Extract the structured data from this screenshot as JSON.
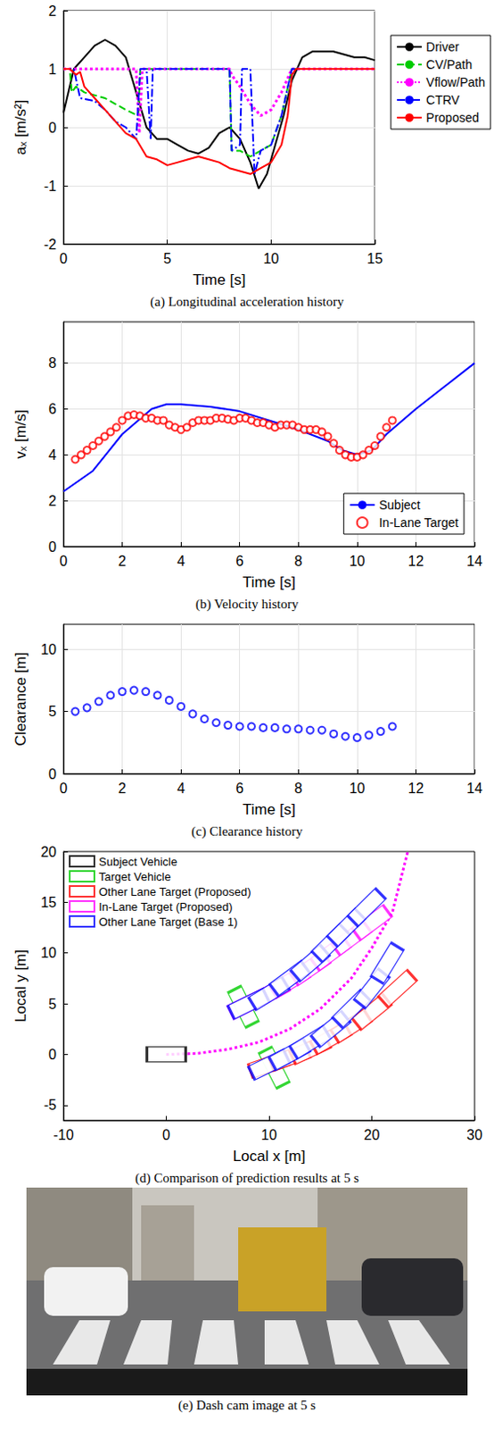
{
  "chart_data": [
    {
      "type": "line",
      "title": "(a) Longitudinal acceleration history",
      "xlabel": "Time [s]",
      "ylabel": "aₓ [m/s²]",
      "xlim": [
        0,
        15
      ],
      "xticks": [
        0,
        5,
        10,
        15
      ],
      "ylim": [
        -2,
        2
      ],
      "yticks": [
        -2,
        -1,
        0,
        1,
        2
      ],
      "grid": true,
      "legend": "right",
      "series": [
        {
          "name": "Driver",
          "color": "#000000",
          "line_style": "solid",
          "x": [
            0,
            0.5,
            1,
            1.5,
            2,
            2.5,
            3,
            3.5,
            4,
            4.5,
            5,
            5.5,
            6,
            6.5,
            7,
            7.5,
            8,
            8.5,
            9,
            9.4,
            9.8,
            10.2,
            10.6,
            11,
            11.5,
            12,
            13,
            14,
            14.5,
            15
          ],
          "values": [
            0.25,
            1.0,
            1.2,
            1.4,
            1.5,
            1.4,
            1.2,
            0.6,
            0.0,
            -0.2,
            -0.2,
            -0.3,
            -0.4,
            -0.45,
            -0.35,
            -0.1,
            0.0,
            -0.2,
            -0.6,
            -1.05,
            -0.8,
            -0.3,
            0.2,
            0.8,
            1.2,
            1.3,
            1.3,
            1.2,
            1.2,
            1.15
          ]
        },
        {
          "name": "CV/Path",
          "color": "#00cc00",
          "line_style": "dashed",
          "x": [
            0,
            0.3,
            0.4,
            0.6,
            1,
            2,
            3,
            3.6,
            3.7,
            8,
            8.1,
            8.5,
            9,
            9.5,
            10,
            10.5,
            11,
            15
          ],
          "values": [
            1.0,
            1.0,
            0.6,
            0.7,
            0.6,
            0.5,
            0.3,
            0.2,
            1.0,
            1.0,
            -0.4,
            -0.4,
            -0.5,
            -0.4,
            -0.3,
            0.2,
            1.0,
            1.0
          ]
        },
        {
          "name": "Vflow/Path",
          "color": "#ff00ff",
          "line_style": "dotted",
          "x": [
            0,
            3.5,
            3.65,
            3.8,
            8,
            8.1,
            8.5,
            9,
            9.5,
            10,
            10.5,
            11,
            15
          ],
          "values": [
            1.0,
            1.0,
            -0.1,
            1.0,
            1.0,
            0.9,
            0.7,
            0.4,
            0.2,
            0.3,
            0.6,
            1.0,
            1.0
          ]
        },
        {
          "name": "CTRV",
          "color": "#0000ff",
          "line_style": "dashdot",
          "x": [
            0,
            0.5,
            0.8,
            1.5,
            2,
            2.5,
            3,
            3.5,
            3.7,
            4.0,
            4.2,
            4.3,
            8,
            8.1,
            8.5,
            8.6,
            9,
            9.2,
            9.5,
            10,
            10.5,
            11,
            15
          ],
          "values": [
            1.0,
            1.0,
            0.5,
            0.45,
            0.3,
            0.1,
            0.0,
            -0.2,
            1.0,
            1.0,
            -0.2,
            1.0,
            1.0,
            -0.4,
            -0.3,
            1.0,
            1.0,
            -0.8,
            -0.4,
            -0.3,
            0.2,
            1.0,
            1.0
          ]
        },
        {
          "name": "Proposed",
          "color": "#ff0000",
          "line_style": "solid",
          "x": [
            0,
            0.3,
            0.6,
            0.8,
            1,
            1.5,
            2,
            2.5,
            3,
            3.5,
            4,
            4.5,
            5,
            5.5,
            6,
            6.5,
            7,
            7.5,
            8,
            8.5,
            9,
            9.5,
            10,
            10.5,
            10.8,
            11,
            11.2,
            15
          ],
          "values": [
            1.0,
            1.0,
            0.9,
            0.95,
            0.7,
            0.5,
            0.3,
            0.1,
            -0.1,
            -0.2,
            -0.5,
            -0.55,
            -0.65,
            -0.6,
            -0.55,
            -0.5,
            -0.55,
            -0.6,
            -0.7,
            -0.75,
            -0.8,
            -0.7,
            -0.6,
            -0.3,
            0.2,
            0.9,
            1.0,
            1.0
          ]
        }
      ]
    },
    {
      "type": "line",
      "title": "(b) Velocity history",
      "xlabel": "Time [s]",
      "ylabel": "vₓ [m/s]",
      "xlim": [
        0,
        14
      ],
      "xticks": [
        0,
        2,
        4,
        6,
        8,
        10,
        12,
        14
      ],
      "ylim": [
        0,
        9.8
      ],
      "yticks": [
        0,
        2,
        4,
        6,
        8
      ],
      "grid": true,
      "legend": "lower right",
      "series": [
        {
          "name": "Subject",
          "color": "#0000ff",
          "type": "line",
          "line_style": "solid",
          "x": [
            0,
            1,
            2,
            3,
            3.5,
            4,
            5,
            6,
            7,
            8,
            9,
            9.5,
            10,
            10.5,
            11,
            12,
            13,
            14
          ],
          "values": [
            2.4,
            3.3,
            4.9,
            6.0,
            6.2,
            6.2,
            6.1,
            5.9,
            5.5,
            5.1,
            4.6,
            4.2,
            4.0,
            4.2,
            4.9,
            6.0,
            7.0,
            8.0
          ]
        },
        {
          "name": "In-Lane Target",
          "color": "#ff0000",
          "type": "scatter",
          "marker": "circle",
          "x": [
            0.4,
            0.6,
            0.8,
            1.0,
            1.2,
            1.4,
            1.6,
            1.8,
            2.0,
            2.2,
            2.4,
            2.6,
            2.8,
            3.0,
            3.2,
            3.4,
            3.6,
            3.8,
            4.0,
            4.2,
            4.4,
            4.6,
            4.8,
            5.0,
            5.2,
            5.4,
            5.6,
            5.8,
            6.0,
            6.2,
            6.4,
            6.6,
            6.8,
            7.0,
            7.2,
            7.4,
            7.6,
            7.8,
            8.0,
            8.2,
            8.4,
            8.6,
            8.8,
            9.0,
            9.2,
            9.4,
            9.6,
            9.8,
            10.0,
            10.2,
            10.4,
            10.6,
            10.8,
            11.0,
            11.2
          ],
          "values": [
            3.8,
            4.0,
            4.2,
            4.4,
            4.6,
            4.8,
            5.0,
            5.2,
            5.5,
            5.7,
            5.75,
            5.7,
            5.6,
            5.6,
            5.5,
            5.5,
            5.3,
            5.2,
            5.1,
            5.2,
            5.4,
            5.5,
            5.5,
            5.5,
            5.6,
            5.6,
            5.55,
            5.5,
            5.6,
            5.6,
            5.5,
            5.4,
            5.4,
            5.3,
            5.2,
            5.3,
            5.3,
            5.3,
            5.2,
            5.1,
            5.1,
            5.1,
            5.0,
            4.8,
            4.5,
            4.2,
            4.0,
            3.9,
            3.9,
            4.0,
            4.2,
            4.4,
            4.8,
            5.2,
            5.5
          ]
        }
      ]
    },
    {
      "type": "scatter",
      "title": "(c) Clearance history",
      "xlabel": "Time [s]",
      "ylabel": "Clearance [m]",
      "xlim": [
        0,
        14
      ],
      "xticks": [
        0,
        2,
        4,
        6,
        8,
        10,
        12,
        14
      ],
      "ylim": [
        0,
        12
      ],
      "yticks": [
        0,
        5,
        10
      ],
      "grid": true,
      "series": [
        {
          "color": "#0000ff",
          "marker": "circle",
          "x": [
            0.4,
            0.8,
            1.2,
            1.6,
            2.0,
            2.4,
            2.8,
            3.2,
            3.6,
            4.0,
            4.4,
            4.8,
            5.2,
            5.6,
            6.0,
            6.4,
            6.8,
            7.2,
            7.6,
            8.0,
            8.4,
            8.8,
            9.2,
            9.6,
            10.0,
            10.4,
            10.8,
            11.2
          ],
          "values": [
            5.0,
            5.3,
            5.8,
            6.3,
            6.6,
            6.7,
            6.6,
            6.3,
            5.9,
            5.4,
            4.8,
            4.4,
            4.1,
            3.9,
            3.8,
            3.8,
            3.7,
            3.7,
            3.6,
            3.6,
            3.5,
            3.5,
            3.2,
            3.0,
            2.9,
            3.1,
            3.4,
            3.8
          ]
        }
      ]
    },
    {
      "type": "scatter",
      "title": "(d) Comparison of prediction results at 5 s",
      "xlabel": "Local x [m]",
      "ylabel": "Local y [m]",
      "xlim": [
        -10,
        30
      ],
      "xticks": [
        -10,
        0,
        10,
        20,
        30
      ],
      "ylim": [
        -6.5,
        20
      ],
      "yticks": [
        -5,
        0,
        5,
        10,
        15,
        20
      ],
      "grid": false,
      "legend": "upper left",
      "series": [
        {
          "name": "Subject Vehicle",
          "color": "#000000",
          "marker": "rect",
          "x": [
            0
          ],
          "values": [
            0
          ]
        },
        {
          "name": "Target Vehicle",
          "color": "#00cc00",
          "marker": "rect",
          "x": [
            7.5,
            10.5
          ],
          "values": [
            4.7,
            -1.3
          ]
        },
        {
          "name": "Other Lane Target (Proposed)",
          "color": "#ff0000",
          "marker": "rect",
          "x": [
            10,
            12,
            14,
            16,
            18,
            20,
            22.5
          ],
          "values": [
            -1,
            -0.3,
            0.5,
            1.6,
            2.8,
            4.2,
            6.5
          ]
        },
        {
          "name": "In-Lane Target (Proposed)",
          "color": "#ff00ff",
          "marker": "rect",
          "x": [
            8,
            10,
            12,
            14,
            16,
            18,
            20
          ],
          "values": [
            5,
            6,
            7.2,
            8.5,
            10,
            11.5,
            13
          ]
        },
        {
          "name": "Other Lane Target (Base 1)",
          "color": "#0000ff",
          "marker": "rect",
          "x": [
            8,
            10,
            12,
            14,
            16,
            17.5,
            19.5,
            null,
            10,
            12,
            14,
            16,
            18,
            20,
            21.5
          ],
          "values": [
            5,
            6,
            7.5,
            9,
            11,
            12.5,
            14.5,
            null,
            -1,
            0,
            1.2,
            2.5,
            4.5,
            6.5,
            9
          ]
        },
        {
          "color": "#ff00ff",
          "type": "line",
          "line_style": "dotted",
          "x": [
            0,
            3,
            6,
            9,
            12,
            15,
            18,
            20,
            22,
            23.5
          ],
          "values": [
            0,
            0.1,
            0.5,
            1.2,
            2.5,
            4.5,
            7.5,
            10.5,
            14,
            20
          ]
        }
      ]
    },
    {
      "type": "image",
      "title": "(e) Dash cam image at 5 s"
    }
  ]
}
